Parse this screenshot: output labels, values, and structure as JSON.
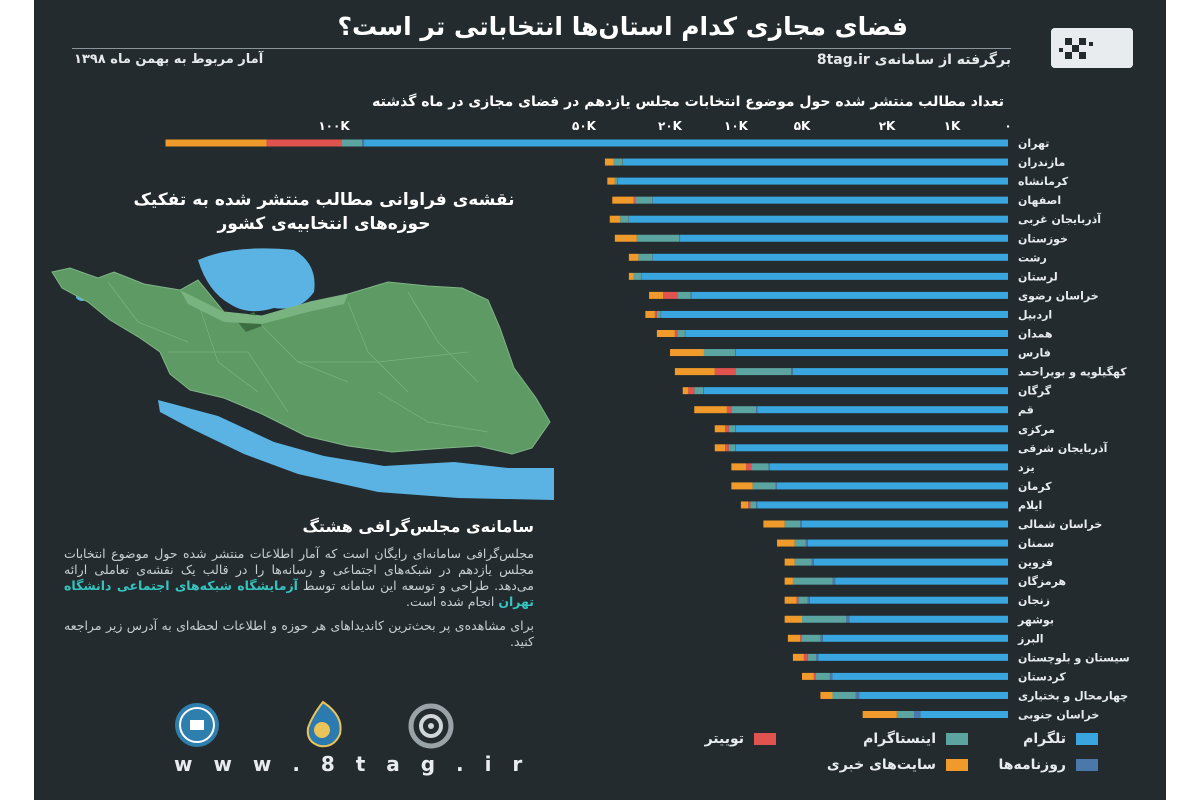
{
  "header": {
    "title": "فضای مجازی کدام استان‌ها انتخاباتی تر است؟",
    "source": "برگرفته از سامانه‌ی 8tag.ir",
    "date": "آمار مربوط به بهمن ماه ۱۳۹۸"
  },
  "map": {
    "title": "نقشه‌ی فراوانی مطالب منتشر شده به تفکیک حوزه‌های انتخابیه‌ی کشور"
  },
  "about": {
    "title": "سامانه‌ی مجلس‌گرافی هشتگ",
    "para1_before": "مجلس‌گرافی سامانه‌ای رایگان است که آمار اطلاعات منتشر شده حول موضوع انتخابات مجلس یازدهم در شبکه‌های اجتماعی و رسانه‌ها را در قالب یک نقشه‌ی تعاملی ارائه می‌دهد. طراحی و توسعه این سامانه توسط",
    "lab_name": "آزمایشگاه شبکه‌های اجتماعی دانشگاه تهران",
    "para1_after": "انجام شده است.",
    "para2": "برای مشاهده‌ی پر بحث‌ترین کاندیداهای هر حوزه و اطلاعات لحظه‌ای به آدرس زیر مراجعه کنید.",
    "url": "w w w . 8 t a g . i r"
  },
  "legend": [
    {
      "label": "تلگرام",
      "color": "#3aa6e0"
    },
    {
      "label": "اینستاگرام",
      "color": "#5ba4a0"
    },
    {
      "label": "توییتر",
      "color": "#e0534f"
    },
    {
      "label": "روزنامه‌ها",
      "color": "#4a78a8"
    },
    {
      "label": "سایت‌های خبری",
      "color": "#ef9a2a"
    }
  ],
  "chart_data": {
    "type": "bar",
    "title": "تعداد مطالب منتشر شده حول موضوع انتخابات مجلس یازدهم در فضای مجازی در ماه گذشته",
    "orientation": "horizontal",
    "scale": "log",
    "ticks": [
      {
        "label": "۰",
        "value": 0
      },
      {
        "label": "1K",
        "value": 1000
      },
      {
        "label": "2K",
        "value": 2000
      },
      {
        "label": "5K",
        "value": 5000
      },
      {
        "label": "10K",
        "value": 10000
      },
      {
        "label": "20K",
        "value": 20000
      },
      {
        "label": "50K",
        "value": 50000
      },
      {
        "label": "100K",
        "value": 100000
      }
    ],
    "tick_display": [
      "۰",
      "۱K",
      "۲K",
      "۵K",
      "۱۰K",
      "۲۰K",
      "۵۰K",
      "۱۰۰K"
    ],
    "series_order": [
      "telegram",
      "newspapers",
      "instagram",
      "twitter",
      "news_sites"
    ],
    "series_colors": {
      "telegram": "#3aa6e0",
      "newspapers": "#4a78a8",
      "instagram": "#5ba4a0",
      "twitter": "#e0534f",
      "news_sites": "#ef9a2a"
    },
    "categories": [
      "تهران",
      "مازندران",
      "کرمانشاه",
      "اصفهان",
      "آذربایجان غربی",
      "خوزستان",
      "رشت",
      "لرستان",
      "خراسان رضوی",
      "اردبیل",
      "همدان",
      "فارس",
      "کهگیلویه و بویراحمد",
      "گرگان",
      "قم",
      "مرکزی",
      "آذربایجان شرقی",
      "یزد",
      "کرمان",
      "ایلام",
      "خراسان شمالی",
      "سمنان",
      "قزوین",
      "هرمزگان",
      "زنجان",
      "بوشهر",
      "البرز",
      "سیستان و بلوچستان",
      "کردستان",
      "چهارمحال و بختیاری",
      "خراسان جنوبی"
    ],
    "cumulative": [
      {
        "telegram": 92000,
        "newspapers": 92500,
        "instagram": 98000,
        "twitter": 110000,
        "news_sites": 125000
      },
      {
        "telegram": 33000,
        "newspapers": 33100,
        "instagram": 36500,
        "twitter": 36500,
        "news_sites": 40000
      },
      {
        "telegram": 35000,
        "newspapers": 35100,
        "instagram": 36000,
        "twitter": 36000,
        "news_sites": 39000
      },
      {
        "telegram": 24000,
        "newspapers": 24100,
        "instagram": 29000,
        "twitter": 29500,
        "news_sites": 37000
      },
      {
        "telegram": 31000,
        "newspapers": 31100,
        "instagram": 34000,
        "twitter": 34000,
        "news_sites": 38000
      },
      {
        "telegram": 18000,
        "newspapers": 18200,
        "instagram": 28500,
        "twitter": 28500,
        "news_sites": 36000
      },
      {
        "telegram": 24000,
        "newspapers": 24100,
        "instagram": 28000,
        "twitter": 28000,
        "news_sites": 31000
      },
      {
        "telegram": 27000,
        "newspapers": 27100,
        "instagram": 29500,
        "twitter": 29500,
        "news_sites": 31000
      },
      {
        "telegram": 16000,
        "newspapers": 16100,
        "instagram": 18500,
        "twitter": 21500,
        "news_sites": 25000
      },
      {
        "telegram": 22000,
        "newspapers": 22100,
        "instagram": 23000,
        "twitter": 23500,
        "news_sites": 26000
      },
      {
        "telegram": 17000,
        "newspapers": 17100,
        "instagram": 18500,
        "twitter": 19000,
        "news_sites": 23000
      },
      {
        "telegram": 10000,
        "newspapers": 10100,
        "instagram": 14000,
        "twitter": 14000,
        "news_sites": 20000
      },
      {
        "telegram": 5500,
        "newspapers": 5600,
        "instagram": 10000,
        "twitter": 12500,
        "news_sites": 19000
      },
      {
        "telegram": 14000,
        "newspapers": 14100,
        "instagram": 15500,
        "twitter": 16500,
        "news_sites": 17500
      },
      {
        "telegram": 8000,
        "newspapers": 8100,
        "instagram": 10500,
        "twitter": 11000,
        "news_sites": 15500
      },
      {
        "telegram": 10000,
        "newspapers": 10100,
        "instagram": 10800,
        "twitter": 11200,
        "news_sites": 12500
      },
      {
        "telegram": 10000,
        "newspapers": 10100,
        "instagram": 10800,
        "twitter": 11200,
        "news_sites": 12500
      },
      {
        "telegram": 7000,
        "newspapers": 7100,
        "instagram": 8500,
        "twitter": 9000,
        "news_sites": 10500
      },
      {
        "telegram": 6500,
        "newspapers": 6600,
        "instagram": 8400,
        "twitter": 8400,
        "news_sites": 10500
      },
      {
        "telegram": 8000,
        "newspapers": 8100,
        "instagram": 8600,
        "twitter": 8800,
        "news_sites": 9500
      },
      {
        "telegram": 5000,
        "newspapers": 5100,
        "instagram": 6000,
        "twitter": 6000,
        "news_sites": 7500
      },
      {
        "telegram": 4700,
        "newspapers": 4800,
        "instagram": 5400,
        "twitter": 5400,
        "news_sites": 6500
      },
      {
        "telegram": 4400,
        "newspapers": 4500,
        "instagram": 5400,
        "twitter": 5400,
        "news_sites": 6000
      },
      {
        "telegram": 3500,
        "newspapers": 3600,
        "instagram": 5500,
        "twitter": 5500,
        "news_sites": 6000
      },
      {
        "telegram": 4600,
        "newspapers": 4700,
        "instagram": 5200,
        "twitter": 5300,
        "news_sites": 6000
      },
      {
        "telegram": 3000,
        "newspapers": 3100,
        "instagram": 5000,
        "twitter": 5000,
        "news_sites": 6000
      },
      {
        "telegram": 4000,
        "newspapers": 4100,
        "instagram": 5000,
        "twitter": 5100,
        "news_sites": 5800
      },
      {
        "telegram": 4200,
        "newspapers": 4300,
        "instagram": 4700,
        "twitter": 4900,
        "news_sites": 5500
      },
      {
        "telegram": 3600,
        "newspapers": 3700,
        "instagram": 4300,
        "twitter": 4400,
        "news_sites": 5000
      },
      {
        "telegram": 2700,
        "newspapers": 2800,
        "instagram": 3600,
        "twitter": 3600,
        "news_sites": 4100
      },
      {
        "telegram": 1400,
        "newspapers": 1500,
        "instagram": 1800,
        "twitter": 1800,
        "news_sites": 2600
      }
    ]
  }
}
